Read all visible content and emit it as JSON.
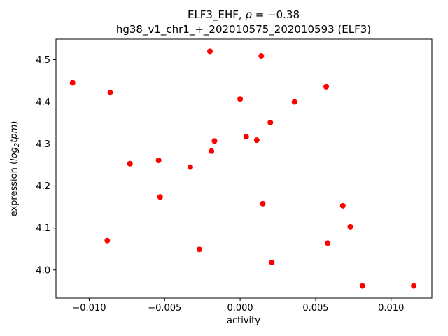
{
  "title": {
    "line1_prefix": "ELF3_EHF, ",
    "line1_rho": "ρ",
    "line1_suffix": " = −0.38",
    "line2": "hg38_v1_chr1_+_202010575_202010593 (ELF3)"
  },
  "ylabel_parts": {
    "prefix": "expression (",
    "log": "log",
    "sub": "2",
    "word": "tpm",
    "suffix": ")"
  },
  "chart_data": {
    "type": "scatter",
    "title": "ELF3_EHF, ρ = −0.38",
    "subtitle": "hg38_v1_chr1_+_202010575_202010593 (ELF3)",
    "xlabel": "activity",
    "ylabel": "expression (log2tpm)",
    "marker_color": "#ff0000",
    "marker_radius": 4,
    "grid": false,
    "legend": null,
    "xlim": [
      -0.0122,
      0.0127
    ],
    "ylim": [
      3.933,
      4.549
    ],
    "x_ticks": [
      {
        "v": -0.01,
        "label": "−0.010"
      },
      {
        "v": -0.005,
        "label": "−0.005"
      },
      {
        "v": 0.0,
        "label": "0.000"
      },
      {
        "v": 0.005,
        "label": "0.005"
      },
      {
        "v": 0.01,
        "label": "0.010"
      }
    ],
    "y_ticks": [
      {
        "v": 4.0,
        "label": "4.0"
      },
      {
        "v": 4.1,
        "label": "4.1"
      },
      {
        "v": 4.2,
        "label": "4.2"
      },
      {
        "v": 4.3,
        "label": "4.3"
      },
      {
        "v": 4.4,
        "label": "4.4"
      },
      {
        "v": 4.5,
        "label": "4.5"
      }
    ],
    "points": [
      [
        -0.0111,
        4.445
      ],
      [
        -0.0086,
        4.422
      ],
      [
        -0.0088,
        4.07
      ],
      [
        -0.0073,
        4.253
      ],
      [
        -0.0054,
        4.261
      ],
      [
        -0.0053,
        4.174
      ],
      [
        -0.0033,
        4.245
      ],
      [
        -0.0027,
        4.049
      ],
      [
        -0.002,
        4.52
      ],
      [
        -0.0019,
        4.283
      ],
      [
        -0.0017,
        4.307
      ],
      [
        0.0,
        4.407
      ],
      [
        0.0004,
        4.317
      ],
      [
        0.0011,
        4.309
      ],
      [
        0.0014,
        4.509
      ],
      [
        0.0015,
        4.158
      ],
      [
        0.002,
        4.351
      ],
      [
        0.0021,
        4.018
      ],
      [
        0.0036,
        4.4
      ],
      [
        0.0057,
        4.436
      ],
      [
        0.0058,
        4.064
      ],
      [
        0.0068,
        4.153
      ],
      [
        0.0073,
        4.103
      ],
      [
        0.0081,
        3.962
      ],
      [
        0.0115,
        3.962
      ]
    ]
  }
}
